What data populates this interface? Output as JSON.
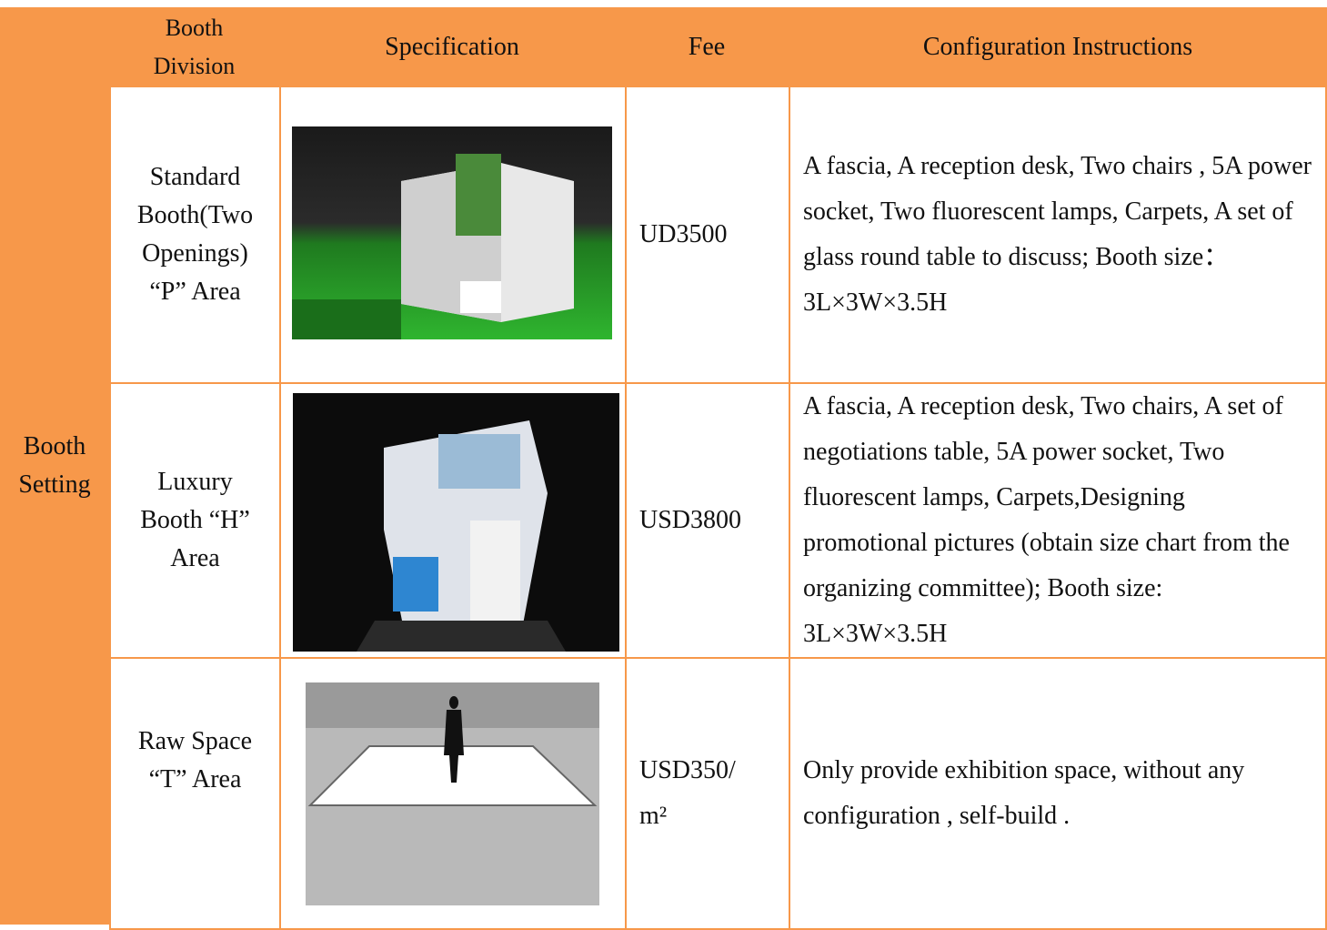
{
  "table": {
    "group": "Booth Setting",
    "header": [
      "Booth Division",
      "Specification",
      "Fee",
      "Configuration Instructions"
    ],
    "rows": [
      {
        "division": "Standard Booth(Two Openings) “P” Area",
        "fee": "UD3500",
        "instructions": "A fascia, A reception desk, Two chairs , 5A power socket, Two fluorescent lamps, Carpets, A set of glass round table to discuss; Booth size：3L×3W×3.5H"
      },
      {
        "division": "Luxury Booth “H” Area",
        "fee": "USD3800",
        "instructions": "A fascia, A reception desk, Two chairs, A set of negotiations table, 5A power socket, Two fluorescent lamps, Carpets,Designing promotional pictures (obtain size chart from the organizing committee); Booth size: 3L×3W×3.5H"
      },
      {
        "division": "Raw Space “T” Area",
        "fee": "USD350/m²",
        "instructions": "Only provide exhibition space, without any configuration , self-build ."
      }
    ]
  }
}
